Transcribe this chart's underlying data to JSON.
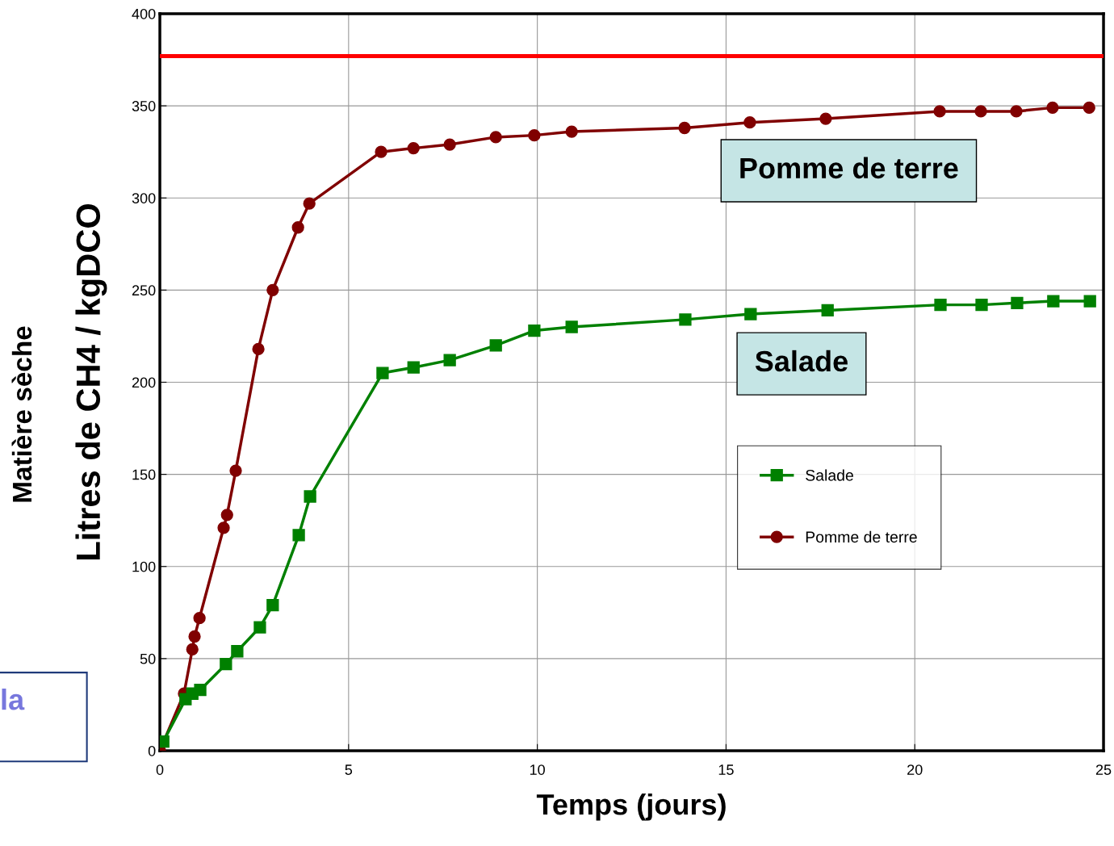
{
  "chart_data": {
    "type": "line",
    "xlabel": "Temps (jours)",
    "ylabel": "Litres de CH4 / kgDCO",
    "xlim": [
      0,
      25
    ],
    "xticks": [
      0,
      5,
      10,
      15,
      20,
      25
    ],
    "ylim": [
      0,
      400
    ],
    "yticks": [
      0,
      50,
      100,
      150,
      200,
      250,
      300,
      350,
      400
    ],
    "grid": true,
    "legend": "right",
    "annotations": [
      "Pomme de terre",
      "Salade",
      "Matière sèche",
      "la"
    ],
    "ref_lines": [
      {
        "axis": "y",
        "value": 377,
        "color": "#ff0000",
        "line_style": "solid"
      }
    ],
    "series": [
      {
        "name": "Salade",
        "color": "#008000",
        "marker": "square",
        "line_style": "solid",
        "x": [
          0.09,
          0.68,
          0.86,
          1.07,
          1.75,
          2.05,
          2.65,
          2.99,
          3.68,
          3.98,
          5.9,
          6.72,
          7.68,
          8.9,
          9.92,
          10.91,
          13.92,
          15.65,
          17.69,
          20.68,
          21.77,
          22.71,
          23.67,
          24.64
        ],
        "values": [
          5,
          28,
          31,
          33,
          47,
          54,
          67,
          79,
          117,
          138,
          205,
          208,
          212,
          220,
          228,
          230,
          234,
          237,
          239,
          242,
          242,
          243,
          244,
          244
        ]
      },
      {
        "name": "Pomme de terre",
        "color": "#800000",
        "marker": "circle",
        "line_style": "solid",
        "x": [
          0,
          0.64,
          0.86,
          0.92,
          1.05,
          1.69,
          1.78,
          2.01,
          2.61,
          2.99,
          3.66,
          3.96,
          5.86,
          6.72,
          7.68,
          8.9,
          9.92,
          10.91,
          13.9,
          15.63,
          17.64,
          20.66,
          21.75,
          22.69,
          23.65,
          24.62
        ],
        "values": [
          0,
          31,
          55,
          62,
          72,
          121,
          128,
          152,
          218,
          250,
          284,
          297,
          325,
          327,
          329,
          333,
          334,
          336,
          338,
          341,
          343,
          347,
          347,
          347,
          349,
          349
        ]
      }
    ]
  }
}
